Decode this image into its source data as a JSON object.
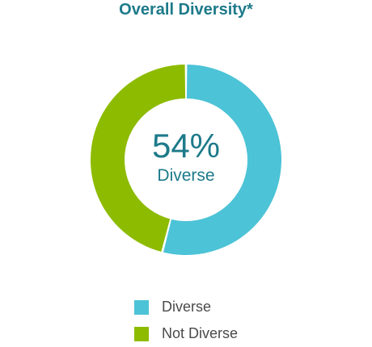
{
  "chart_data": {
    "type": "pie",
    "title": "Overall Diversity*",
    "center_value": "54%",
    "center_label": "Diverse",
    "legend_placement": "bottom",
    "slices": [
      {
        "name": "Diverse",
        "value": 54,
        "color": "#4cc3d6"
      },
      {
        "name": "Not Diverse",
        "value": 46,
        "color": "#8dbb00"
      }
    ]
  }
}
